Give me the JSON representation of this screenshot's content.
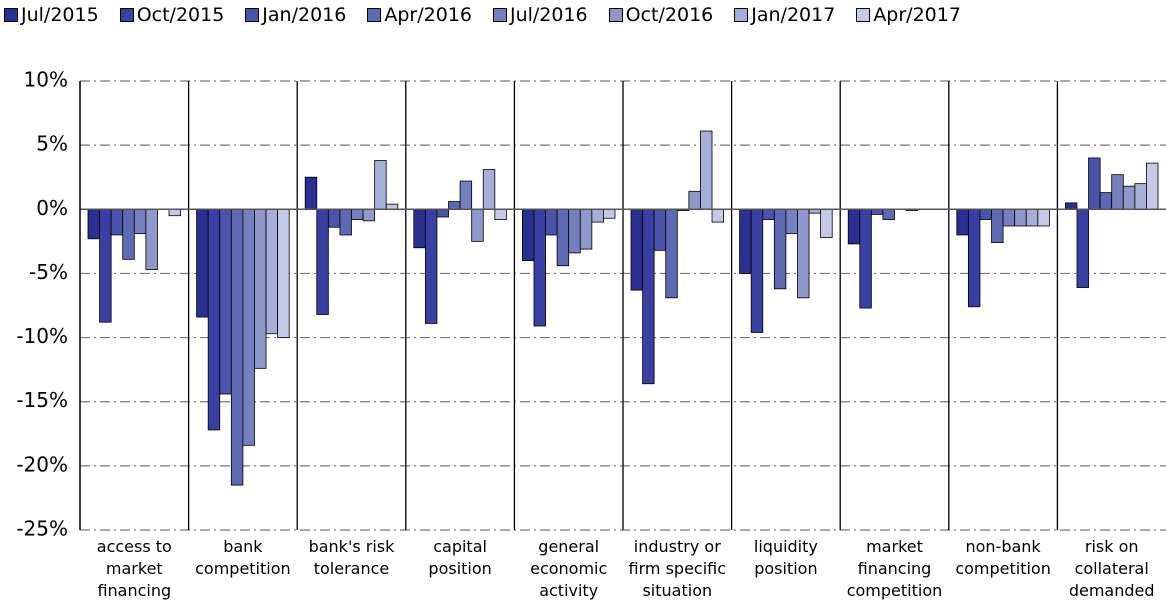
{
  "chart_data": {
    "type": "bar",
    "categories": [
      "access to market financing",
      "bank competition",
      "bank's risk tolerance",
      "capital position",
      "general economic activity",
      "industry or firm specific situation",
      "liquidity position",
      "market financing competition",
      "non-bank competition",
      "risk on collateral demanded"
    ],
    "series": [
      {
        "name": "Jul/2015",
        "color": "#2b2f8f",
        "values": [
          -2.3,
          -8.4,
          2.5,
          -3.0,
          -4.0,
          -6.3,
          -5.0,
          -2.7,
          -2.0,
          0.5
        ]
      },
      {
        "name": "Oct/2015",
        "color": "#3a40a2",
        "values": [
          -8.8,
          -17.2,
          -8.2,
          -8.9,
          -9.1,
          -13.6,
          -9.6,
          -7.7,
          -7.6,
          -6.1
        ]
      },
      {
        "name": "Jan/2016",
        "color": "#4a54ab",
        "values": [
          -2.0,
          -14.4,
          -1.4,
          -0.6,
          -2.0,
          -3.2,
          -0.8,
          -0.4,
          -0.8,
          4.0
        ]
      },
      {
        "name": "Apr/2016",
        "color": "#5e69b4",
        "values": [
          -3.9,
          -21.5,
          -2.0,
          0.6,
          -4.4,
          -6.9,
          -6.2,
          -0.8,
          -2.6,
          1.3
        ]
      },
      {
        "name": "Jul/2016",
        "color": "#7780bf",
        "values": [
          -1.9,
          -18.4,
          -0.8,
          2.2,
          -3.4,
          -0.1,
          -1.9,
          0,
          -1.3,
          2.7
        ]
      },
      {
        "name": "Oct/2016",
        "color": "#8f97cb",
        "values": [
          -4.7,
          -12.4,
          -0.9,
          -2.5,
          -3.1,
          1.4,
          -6.9,
          -0.1,
          -1.3,
          1.8
        ]
      },
      {
        "name": "Jan/2017",
        "color": "#a7aed7",
        "values": [
          0,
          -9.7,
          3.8,
          3.1,
          -1.0,
          6.1,
          -0.3,
          0,
          -1.3,
          2.0
        ]
      },
      {
        "name": "Apr/2017",
        "color": "#c4c9e5",
        "values": [
          -0.5,
          -10.0,
          0.4,
          -0.8,
          -0.7,
          -1.0,
          -2.2,
          0,
          -1.3,
          3.6
        ]
      }
    ],
    "ylim": [
      -25,
      10
    ],
    "yticks": [
      {
        "value": -25,
        "label": "-25%"
      },
      {
        "value": -20,
        "label": "-20%"
      },
      {
        "value": -15,
        "label": "-15%"
      },
      {
        "value": -10,
        "label": "-10%"
      },
      {
        "value": -5,
        "label": "-5%"
      },
      {
        "value": 0,
        "label": "0%"
      },
      {
        "value": 5,
        "label": "5%"
      },
      {
        "value": 10,
        "label": "10%"
      }
    ],
    "grid": true,
    "legend": "top"
  }
}
